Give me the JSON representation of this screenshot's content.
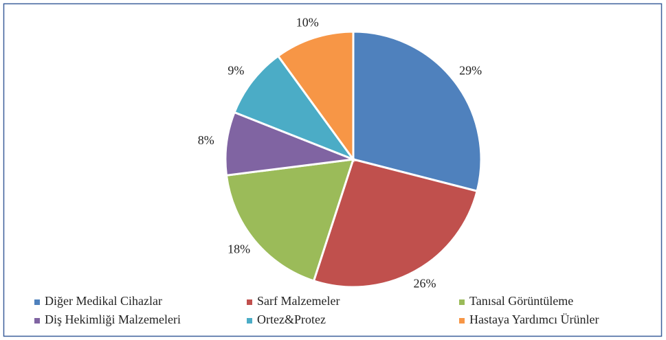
{
  "chart_data": {
    "type": "pie",
    "categories": [
      "Diğer Medikal Cihazlar",
      "Sarf Malzemeler",
      "Tanısal Görüntüleme",
      "Diş Hekimliği Malzemeleri",
      "Ortez&Protez",
      "Hastaya Yardımcı Ürünler"
    ],
    "values": [
      29,
      26,
      18,
      8,
      9,
      10
    ],
    "value_labels": [
      "29%",
      "26%",
      "18%",
      "8%",
      "9%",
      "10%"
    ],
    "colors": [
      "#4f81bd",
      "#c0504d",
      "#9bbb59",
      "#8064a2",
      "#4bacc6",
      "#f79646"
    ],
    "legend": "bottom"
  }
}
